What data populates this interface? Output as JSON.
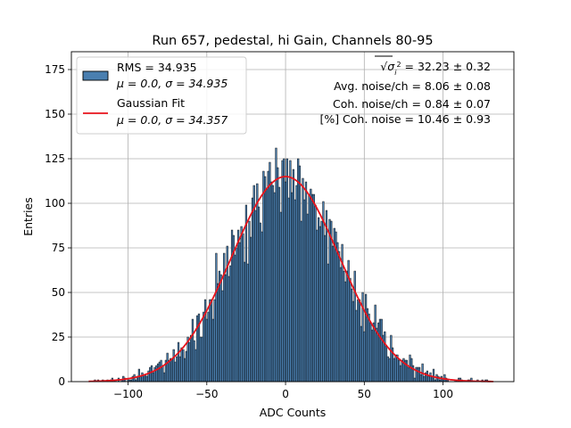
{
  "chart_data": {
    "type": "bar",
    "title": "Run 657, pedestal, hi Gain, Channels 80-95",
    "xlabel": "ADC Counts",
    "ylabel": "Entries",
    "xlim": [
      -136,
      145
    ],
    "ylim": [
      0,
      185
    ],
    "xticks": [
      -100,
      -50,
      0,
      50,
      100
    ],
    "yticks": [
      0,
      25,
      50,
      75,
      100,
      125,
      150,
      175
    ],
    "grid": true,
    "legend_position": "top-left",
    "histogram": {
      "name": "RMS = 34.935",
      "name_line2": "μ = 0.0, σ = 34.935",
      "color": "#4a7fb0",
      "edge_color": "#000000",
      "bin_range": [
        -125,
        132
      ],
      "bin_width": 1,
      "amplitude": 115,
      "mean": 0.0,
      "sigma": 34.935
    },
    "fit": {
      "name": "Gaussian Fit",
      "name_line2": "μ = 0.0, σ = 34.357",
      "color": "#e8131b",
      "amplitude": 115,
      "mean": 0.0,
      "sigma": 34.357
    },
    "annotations": [
      {
        "id": "sigma",
        "prefix": "√",
        "symbol": "σ",
        "sub": "i",
        "sup": "2",
        "value": " = 32.23 ± 0.32"
      },
      {
        "id": "avg",
        "text": "Avg. noise/ch = 8.06 ± 0.08"
      },
      {
        "id": "coh",
        "text": "Coh. noise/ch = 0.84 ± 0.07"
      },
      {
        "id": "pct",
        "text": "[%] Coh. noise = 10.46 ± 0.93"
      }
    ]
  }
}
